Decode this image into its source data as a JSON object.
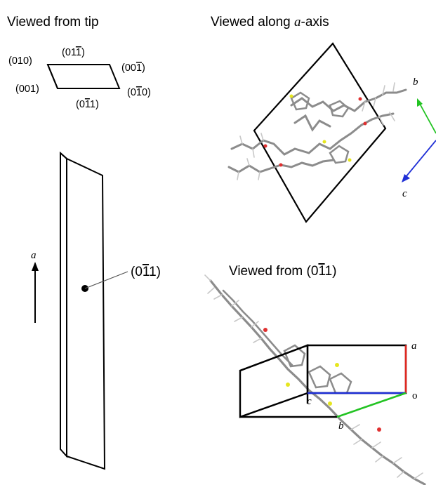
{
  "tip_view": {
    "title": "Viewed from tip",
    "faces": {
      "top_left": "(010)",
      "top": {
        "pre": "(01",
        "bar": "1",
        "post": ")"
      },
      "top_right": {
        "pre": "(00",
        "bar": "1",
        "post": ")"
      },
      "bottom_left": "(001)",
      "bottom_right": {
        "pre": "(0",
        "bar": "1",
        "post": "0)"
      },
      "bottom": {
        "pre": "(0",
        "bar": "1",
        "post": "1)"
      }
    }
  },
  "crystal": {
    "axis_label": "a",
    "face_label": {
      "pre": "(0",
      "bar": "1",
      "post": "1)"
    }
  },
  "a_axis_view": {
    "title_pre": "Viewed along ",
    "title_axis": "a",
    "title_post": "-axis",
    "axis_b": "b",
    "axis_c": "c"
  },
  "face_view": {
    "title_pre": "Viewed from (0",
    "title_bar": "1",
    "title_post": "1)",
    "axis_a": "a",
    "axis_b": "b",
    "axis_c": "c",
    "origin": "o"
  },
  "colors": {
    "axis_a": "#e0261f",
    "axis_b": "#22c322",
    "axis_c": "#1f2fd6",
    "molecule_bond": "#8c8c8c",
    "molecule_hydrogen": "#c8c8c8",
    "molecule_sulfur": "#e6e61e",
    "molecule_oxygen": "#e03030"
  }
}
